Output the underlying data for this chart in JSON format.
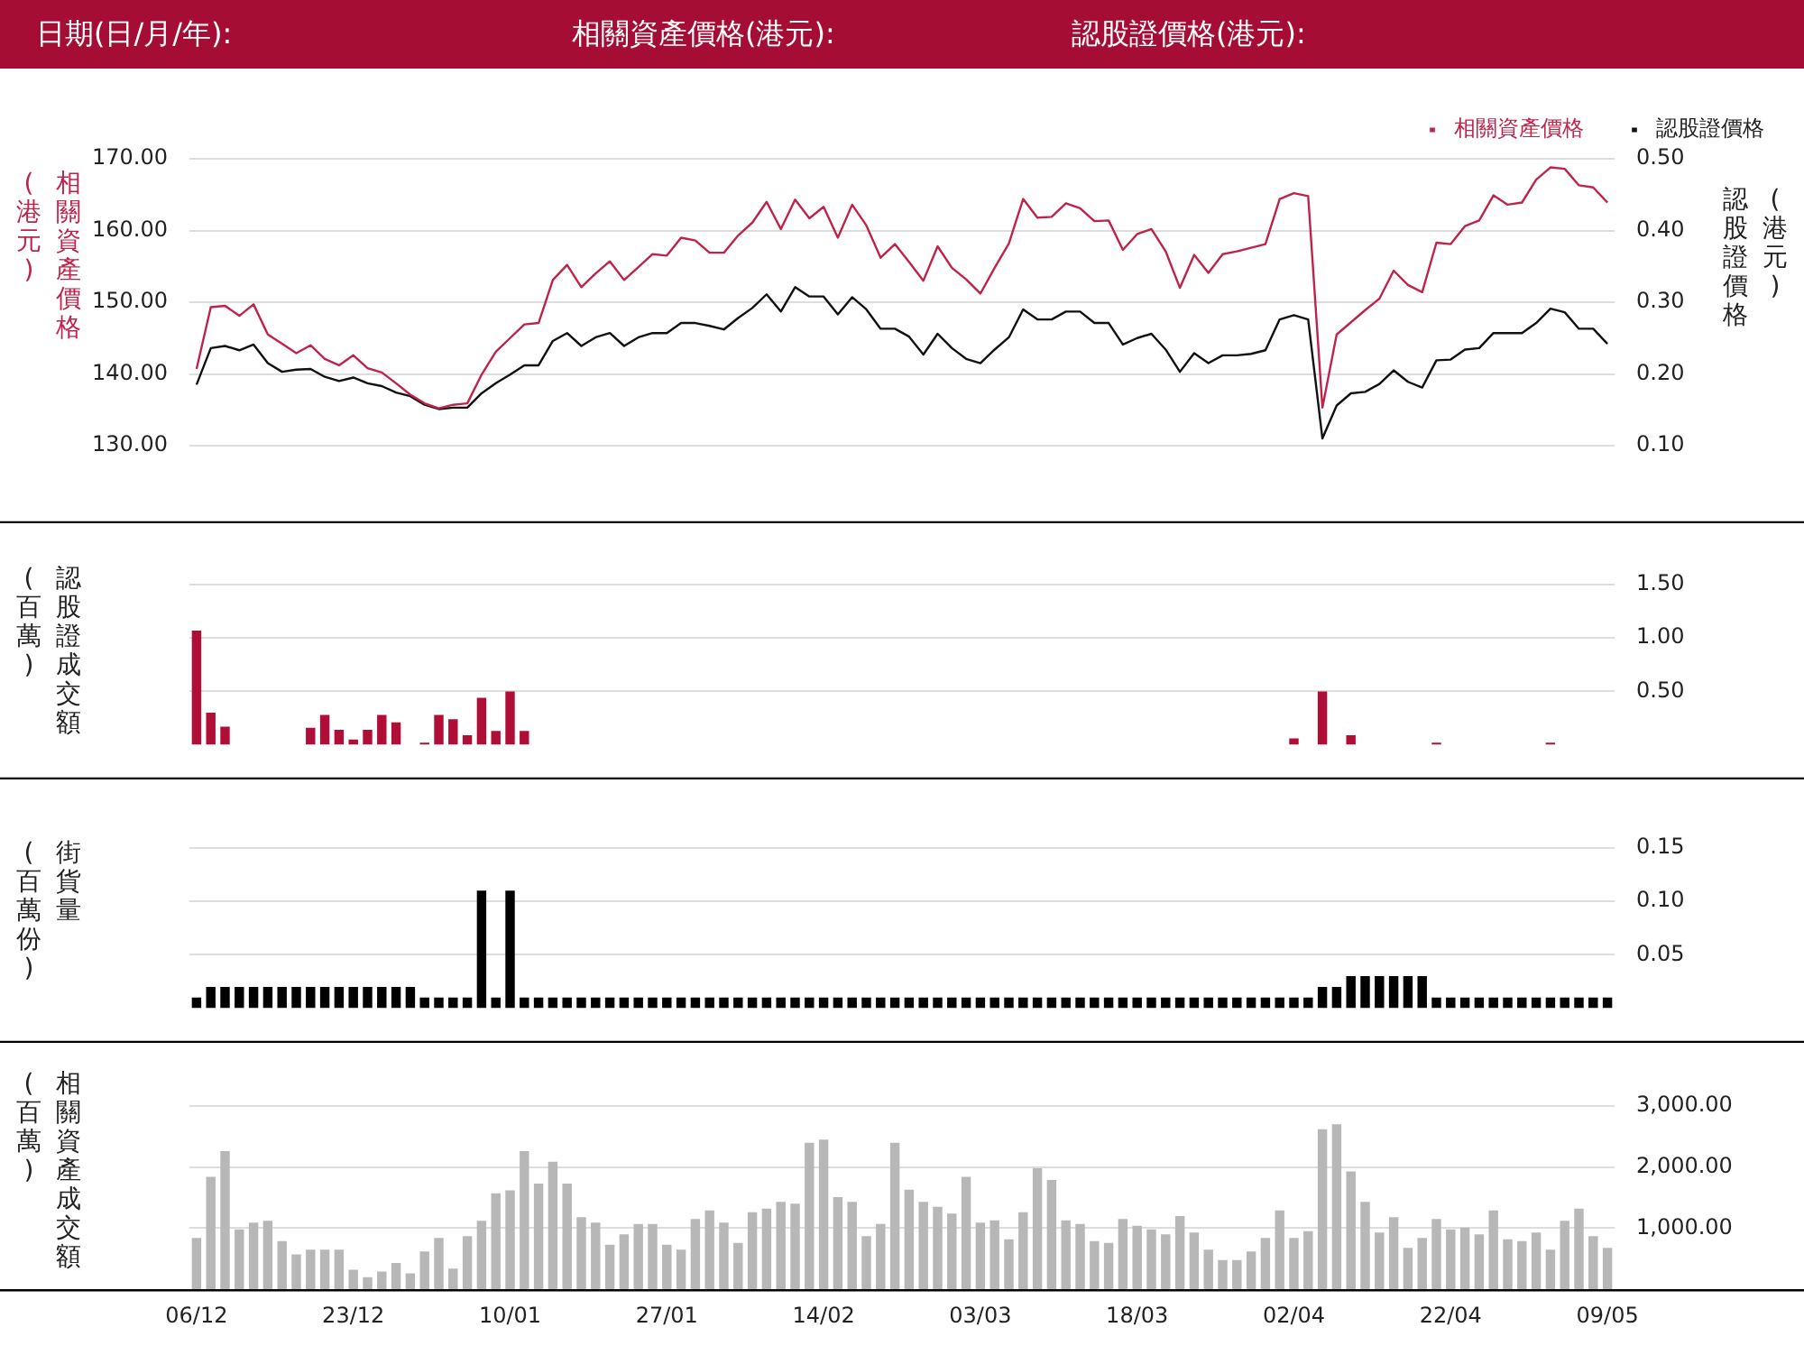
{
  "chart_data": [
    {
      "type": "line",
      "annotations": [
        "日期(日/月/年):",
        "相關資產價格(港元):",
        "認股證價格(港元):"
      ],
      "ylabel": "相關資產價格(港元)",
      "y2label": "認股證價格(港元)",
      "categories": [
        null,
        null,
        null,
        null,
        null,
        null,
        null,
        null,
        null,
        null,
        null,
        null,
        null,
        null,
        null,
        null,
        null,
        null,
        null,
        null,
        null,
        null,
        null,
        null,
        null,
        null,
        null,
        null,
        null,
        null,
        null,
        null,
        null,
        null,
        null,
        null,
        null,
        null,
        null,
        null,
        null,
        null,
        null,
        null,
        null,
        null,
        null,
        null,
        null,
        null,
        null,
        null,
        null,
        null,
        null,
        null,
        null,
        null,
        null,
        null,
        null,
        null,
        null,
        null,
        null,
        null,
        null,
        null,
        null,
        null,
        null,
        null,
        null,
        null,
        null,
        null,
        null,
        null,
        null,
        null,
        null,
        null,
        null,
        null,
        null,
        null,
        null,
        null,
        null,
        null,
        null,
        null,
        null,
        null,
        null,
        null,
        null,
        null,
        null,
        null
      ],
      "series": [
        {
          "name": "相關資產價格",
          "color": "#c0234a",
          "values": [
            140.7,
            149.3,
            149.5,
            148.1,
            149.7,
            145.5,
            144.2,
            142.9,
            144.0,
            142.1,
            141.2,
            142.6,
            140.8,
            140.2,
            138.7,
            137.1,
            135.9,
            135.2,
            135.7,
            135.9,
            139.9,
            143.1,
            145.0,
            146.9,
            147.1,
            153.1,
            155.2,
            152.1,
            154.0,
            155.7,
            153.1,
            154.9,
            156.7,
            156.5,
            159.0,
            158.6,
            156.9,
            156.9,
            159.3,
            161.1,
            164.0,
            160.2,
            164.3,
            161.7,
            163.3,
            159.0,
            163.6,
            160.7,
            156.2,
            158.1,
            155.6,
            153.0,
            157.8,
            154.8,
            153.2,
            151.2,
            154.8,
            158.2,
            164.4,
            161.8,
            161.9,
            163.8,
            163.1,
            161.3,
            161.4,
            157.3,
            159.5,
            160.2,
            157.1,
            152.0,
            156.6,
            154.1,
            156.7,
            157.1,
            157.6,
            158.1,
            164.4,
            165.2,
            164.8,
            135.3,
            145.5,
            147.2,
            148.9,
            150.5,
            154.4,
            152.4,
            151.4,
            158.3,
            158.1,
            160.6,
            161.4,
            164.9,
            163.6,
            163.9,
            167.1,
            168.8,
            168.6,
            166.3,
            166.0,
            163.9
          ]
        },
        {
          "name": "認股證價格",
          "color": "#111111",
          "axis": "y2",
          "values": [
            0.185,
            0.236,
            0.239,
            0.233,
            0.241,
            0.215,
            0.203,
            0.206,
            0.207,
            0.196,
            0.19,
            0.195,
            0.187,
            0.183,
            0.174,
            0.169,
            0.157,
            0.151,
            0.153,
            0.153,
            0.173,
            0.187,
            0.199,
            0.212,
            0.212,
            0.246,
            0.257,
            0.239,
            0.251,
            0.257,
            0.239,
            0.251,
            0.257,
            0.257,
            0.271,
            0.271,
            0.267,
            0.262,
            0.278,
            0.292,
            0.311,
            0.287,
            0.321,
            0.308,
            0.308,
            0.283,
            0.307,
            0.29,
            0.263,
            0.263,
            0.252,
            0.227,
            0.256,
            0.236,
            0.221,
            0.215,
            0.234,
            0.251,
            0.29,
            0.276,
            0.276,
            0.287,
            0.287,
            0.271,
            0.271,
            0.241,
            0.25,
            0.256,
            0.234,
            0.203,
            0.229,
            0.215,
            0.226,
            0.226,
            0.228,
            0.233,
            0.276,
            0.282,
            0.276,
            0.11,
            0.156,
            0.173,
            0.175,
            0.186,
            0.205,
            0.189,
            0.181,
            0.219,
            0.22,
            0.234,
            0.236,
            0.257,
            0.257,
            0.257,
            0.271,
            0.291,
            0.286,
            0.263,
            0.263,
            0.242
          ]
        }
      ],
      "ylim": [
        130,
        170
      ],
      "yticks": [
        {
          "value": 130,
          "label": "130.00"
        },
        {
          "value": 140,
          "label": "140.00"
        },
        {
          "value": 150,
          "label": "150.00"
        },
        {
          "value": 160,
          "label": "160.00"
        },
        {
          "value": 170,
          "label": "170.00"
        }
      ],
      "y2lim": [
        0.1,
        0.5
      ],
      "y2ticks": [
        {
          "value": 0.1,
          "label": "0.10"
        },
        {
          "value": 0.2,
          "label": "0.20"
        },
        {
          "value": 0.3,
          "label": "0.30"
        },
        {
          "value": 0.4,
          "label": "0.40"
        },
        {
          "value": 0.5,
          "label": "0.50"
        }
      ],
      "grid": "y",
      "legend": "top right",
      "marker": "none",
      "line_style": "solid",
      "tick_labels": "y"
    },
    {
      "type": "bar",
      "ylabel": "認股證成交額(百萬)",
      "categories": [
        null,
        null,
        null,
        null,
        null,
        null,
        null,
        null,
        null,
        null,
        null,
        null,
        null,
        null,
        null,
        null,
        null,
        null,
        null,
        null,
        null,
        null,
        null,
        null,
        null,
        null,
        null,
        null,
        null,
        null,
        null,
        null,
        null,
        null,
        null,
        null,
        null,
        null,
        null,
        null,
        null,
        null,
        null,
        null,
        null,
        null,
        null,
        null,
        null,
        null,
        null,
        null,
        null,
        null,
        null,
        null,
        null,
        null,
        null,
        null,
        null,
        null,
        null,
        null,
        null,
        null,
        null,
        null,
        null,
        null,
        null,
        null,
        null,
        null,
        null,
        null,
        null,
        null,
        null,
        null,
        null,
        null,
        null,
        null,
        null,
        null,
        null,
        null,
        null,
        null,
        null,
        null,
        null,
        null,
        null,
        null,
        null,
        null,
        null,
        null
      ],
      "series": [
        {
          "color": "#b00e37",
          "values": [
            1.07,
            0.3,
            0.17,
            0,
            0,
            0,
            0,
            0,
            0.16,
            0.28,
            0.14,
            0.05,
            0.14,
            0.28,
            0.21,
            0,
            0.02,
            0.28,
            0.24,
            0.09,
            0.44,
            0.13,
            0.5,
            0.13,
            0,
            0,
            0,
            0,
            0,
            0,
            0,
            0,
            0,
            0,
            0,
            0,
            0,
            0,
            0,
            0,
            0,
            0,
            0,
            0,
            0,
            0,
            0,
            0,
            0,
            0,
            0,
            0,
            0,
            0,
            0,
            0,
            0,
            0,
            0,
            0,
            0,
            0,
            0,
            0,
            0,
            0,
            0,
            0,
            0,
            0,
            0,
            0,
            0,
            0,
            0,
            0,
            0,
            0.06,
            0,
            0.5,
            0,
            0.09,
            0,
            0,
            0,
            0,
            0,
            0.02,
            0,
            0,
            0,
            0,
            0,
            0,
            0,
            0.02,
            0,
            0,
            0,
            0
          ]
        }
      ],
      "ylim": [
        0,
        1.5
      ],
      "yticks": [
        {
          "value": 0.5,
          "label": "0.50"
        },
        {
          "value": 1,
          "label": "1.00"
        },
        {
          "value": 1.5,
          "label": "1.50"
        }
      ],
      "grid": "y",
      "tick_labels": "y"
    },
    {
      "type": "bar",
      "ylabel": "街貨量(百萬份)",
      "categories": [
        null,
        null,
        null,
        null,
        null,
        null,
        null,
        null,
        null,
        null,
        null,
        null,
        null,
        null,
        null,
        null,
        null,
        null,
        null,
        null,
        null,
        null,
        null,
        null,
        null,
        null,
        null,
        null,
        null,
        null,
        null,
        null,
        null,
        null,
        null,
        null,
        null,
        null,
        null,
        null,
        null,
        null,
        null,
        null,
        null,
        null,
        null,
        null,
        null,
        null,
        null,
        null,
        null,
        null,
        null,
        null,
        null,
        null,
        null,
        null,
        null,
        null,
        null,
        null,
        null,
        null,
        null,
        null,
        null,
        null,
        null,
        null,
        null,
        null,
        null,
        null,
        null,
        null,
        null,
        null,
        null,
        null,
        null,
        null,
        null,
        null,
        null,
        null,
        null,
        null,
        null,
        null,
        null,
        null,
        null,
        null,
        null,
        null,
        null,
        null
      ],
      "series": [
        {
          "color": "#000000",
          "values": [
            0.01,
            0.02,
            0.02,
            0.02,
            0.02,
            0.02,
            0.02,
            0.02,
            0.02,
            0.02,
            0.02,
            0.02,
            0.02,
            0.02,
            0.02,
            0.02,
            0.01,
            0.01,
            0.01,
            0.01,
            0.11,
            0.01,
            0.11,
            0.01,
            0.01,
            0.01,
            0.01,
            0.01,
            0.01,
            0.01,
            0.01,
            0.01,
            0.01,
            0.01,
            0.01,
            0.01,
            0.01,
            0.01,
            0.01,
            0.01,
            0.01,
            0.01,
            0.01,
            0.01,
            0.01,
            0.01,
            0.01,
            0.01,
            0.01,
            0.01,
            0.01,
            0.01,
            0.01,
            0.01,
            0.01,
            0.01,
            0.01,
            0.01,
            0.01,
            0.01,
            0.01,
            0.01,
            0.01,
            0.01,
            0.01,
            0.01,
            0.01,
            0.01,
            0.01,
            0.01,
            0.01,
            0.01,
            0.01,
            0.01,
            0.01,
            0.01,
            0.01,
            0.01,
            0.01,
            0.02,
            0.02,
            0.03,
            0.03,
            0.03,
            0.03,
            0.03,
            0.03,
            0.01,
            0.01,
            0.01,
            0.01,
            0.01,
            0.01,
            0.01,
            0.01,
            0.01,
            0.01,
            0.01,
            0.01,
            0.01
          ]
        }
      ],
      "ylim": [
        0,
        0.15
      ],
      "yticks": [
        {
          "value": 0.05,
          "label": "0.05"
        },
        {
          "value": 0.1,
          "label": "0.10"
        },
        {
          "value": 0.15,
          "label": "0.15"
        }
      ],
      "grid": "y",
      "tick_labels": "y"
    },
    {
      "type": "bar",
      "ylabel": "相關資產成交額(百萬)",
      "categories": [
        "06/12",
        null,
        null,
        null,
        null,
        null,
        null,
        null,
        null,
        null,
        null,
        "23/12",
        null,
        null,
        null,
        null,
        null,
        null,
        null,
        null,
        null,
        null,
        "10/01",
        null,
        null,
        null,
        null,
        null,
        null,
        null,
        null,
        null,
        null,
        "27/01",
        null,
        null,
        null,
        null,
        null,
        null,
        null,
        null,
        null,
        null,
        "14/02",
        null,
        null,
        null,
        null,
        null,
        null,
        null,
        null,
        null,
        null,
        "03/03",
        null,
        null,
        null,
        null,
        null,
        null,
        null,
        null,
        null,
        null,
        "18/03",
        null,
        null,
        null,
        null,
        null,
        null,
        null,
        null,
        null,
        null,
        "02/04",
        null,
        null,
        null,
        null,
        null,
        null,
        null,
        null,
        null,
        null,
        "22/04",
        null,
        null,
        null,
        null,
        null,
        null,
        null,
        null,
        null,
        null,
        "09/05"
      ],
      "series": [
        {
          "color": "#b7b7b7",
          "values": [
            840,
            1840,
            2260,
            980,
            1090,
            1120,
            790,
            570,
            650,
            650,
            650,
            320,
            200,
            290,
            430,
            260,
            620,
            840,
            340,
            870,
            1120,
            1570,
            1620,
            2260,
            1730,
            2090,
            1730,
            1180,
            1090,
            730,
            900,
            1070,
            1070,
            730,
            650,
            1150,
            1290,
            1090,
            760,
            1260,
            1320,
            1430,
            1400,
            2400,
            2450,
            1510,
            1430,
            870,
            1070,
            2400,
            1630,
            1430,
            1350,
            1240,
            1840,
            1090,
            1130,
            820,
            1260,
            1980,
            1790,
            1130,
            1070,
            790,
            760,
            1150,
            1040,
            980,
            900,
            1200,
            930,
            650,
            480,
            480,
            620,
            840,
            1290,
            840,
            950,
            2620,
            2700,
            1930,
            1430,
            930,
            1180,
            680,
            840,
            1150,
            980,
            1010,
            900,
            1290,
            820,
            790,
            930,
            650,
            1120,
            1320,
            870,
            680
          ]
        }
      ],
      "ylim": [
        0,
        3000
      ],
      "yticks": [
        {
          "value": 1000,
          "label": "1,000.00"
        },
        {
          "value": 2000,
          "label": "2,000.00"
        },
        {
          "value": 3000,
          "label": "3,000.00"
        }
      ],
      "grid": "y"
    }
  ]
}
